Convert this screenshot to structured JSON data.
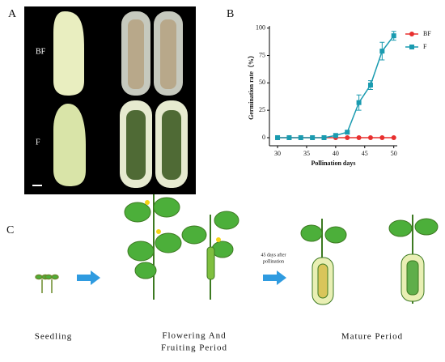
{
  "panels": {
    "a": {
      "label": "A",
      "top_label": "BF",
      "bottom_label": "F"
    },
    "b": {
      "label": "B"
    },
    "c": {
      "label": "C",
      "stage_1": "Seedling",
      "stage_2": [
        "Flowering And",
        "Fruiting Period"
      ],
      "arrow_note": [
        "45 days after",
        "pollination"
      ],
      "stage_3": "Mature Period"
    }
  },
  "chart_data": {
    "type": "line",
    "x_label": "Pollination days",
    "y_label": "Germination rate（%）",
    "x": [
      30,
      32,
      34,
      36,
      38,
      40,
      42,
      44,
      46,
      48,
      50
    ],
    "series": [
      {
        "name": "BF",
        "color": "#e8302f",
        "marker": "circle",
        "values": [
          0,
          0,
          0,
          0,
          0,
          0,
          0,
          0,
          0,
          0,
          0
        ],
        "errors": [
          0,
          0,
          0,
          0,
          0,
          0,
          0,
          0,
          0,
          0,
          0
        ]
      },
      {
        "name": "F",
        "color": "#1a9bb0",
        "marker": "square",
        "values": [
          0,
          0,
          0,
          0,
          0,
          2,
          5,
          32,
          48,
          79,
          93
        ],
        "errors": [
          0,
          0,
          0,
          0,
          0,
          1,
          1,
          7,
          4,
          8,
          4
        ]
      }
    ],
    "xlim": [
      28.6,
      50.6
    ],
    "xticks": [
      30,
      35,
      40,
      45,
      50
    ],
    "ylim": [
      -7.4,
      102
    ],
    "yticks": [
      0,
      25,
      50,
      75,
      100
    ],
    "legend": "top-right"
  }
}
